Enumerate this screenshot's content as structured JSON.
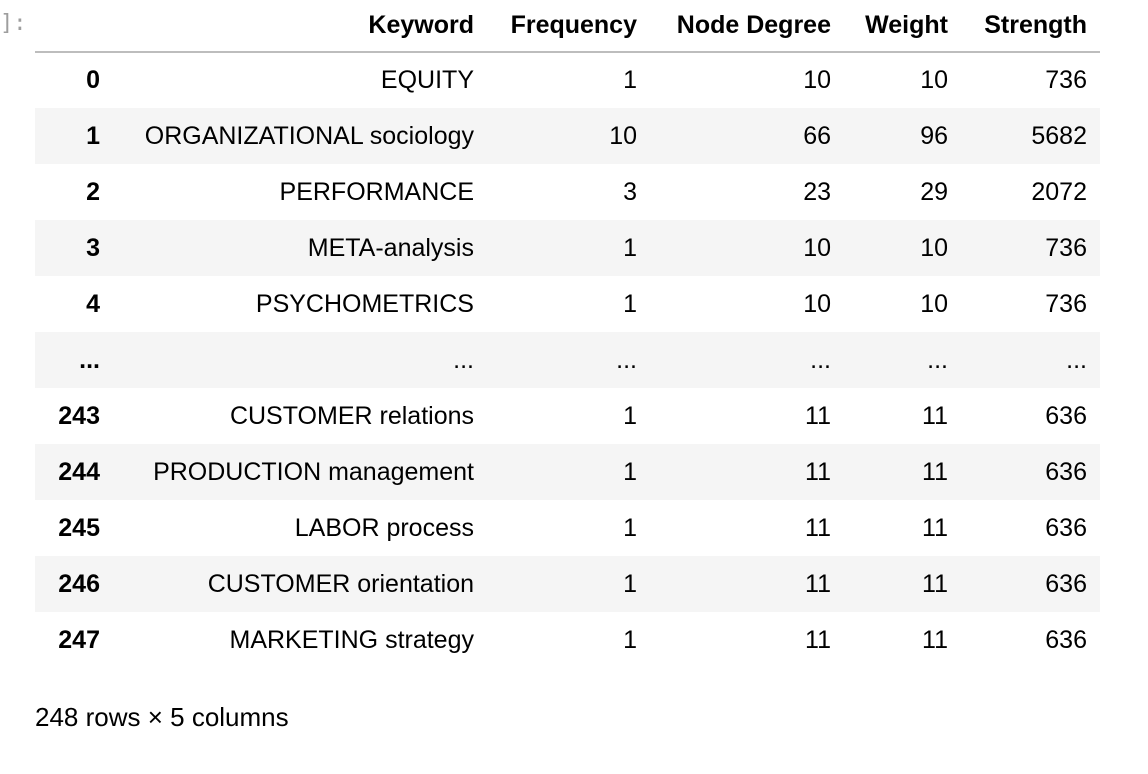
{
  "prompt_marker": "]:",
  "table": {
    "columns": [
      "",
      "Keyword",
      "Frequency",
      "Node Degree",
      "Weight",
      "Strength"
    ],
    "rows": [
      [
        "0",
        "EQUITY",
        "1",
        "10",
        "10",
        "736"
      ],
      [
        "1",
        "ORGANIZATIONAL sociology",
        "10",
        "66",
        "96",
        "5682"
      ],
      [
        "2",
        "PERFORMANCE",
        "3",
        "23",
        "29",
        "2072"
      ],
      [
        "3",
        "META-analysis",
        "1",
        "10",
        "10",
        "736"
      ],
      [
        "4",
        "PSYCHOMETRICS",
        "1",
        "10",
        "10",
        "736"
      ],
      [
        "...",
        "...",
        "...",
        "...",
        "...",
        "..."
      ],
      [
        "243",
        "CUSTOMER relations",
        "1",
        "11",
        "11",
        "636"
      ],
      [
        "244",
        "PRODUCTION management",
        "1",
        "11",
        "11",
        "636"
      ],
      [
        "245",
        "LABOR process",
        "1",
        "11",
        "11",
        "636"
      ],
      [
        "246",
        "CUSTOMER orientation",
        "1",
        "11",
        "11",
        "636"
      ],
      [
        "247",
        "MARKETING strategy",
        "1",
        "11",
        "11",
        "636"
      ]
    ]
  },
  "footer": "248 rows × 5 columns"
}
